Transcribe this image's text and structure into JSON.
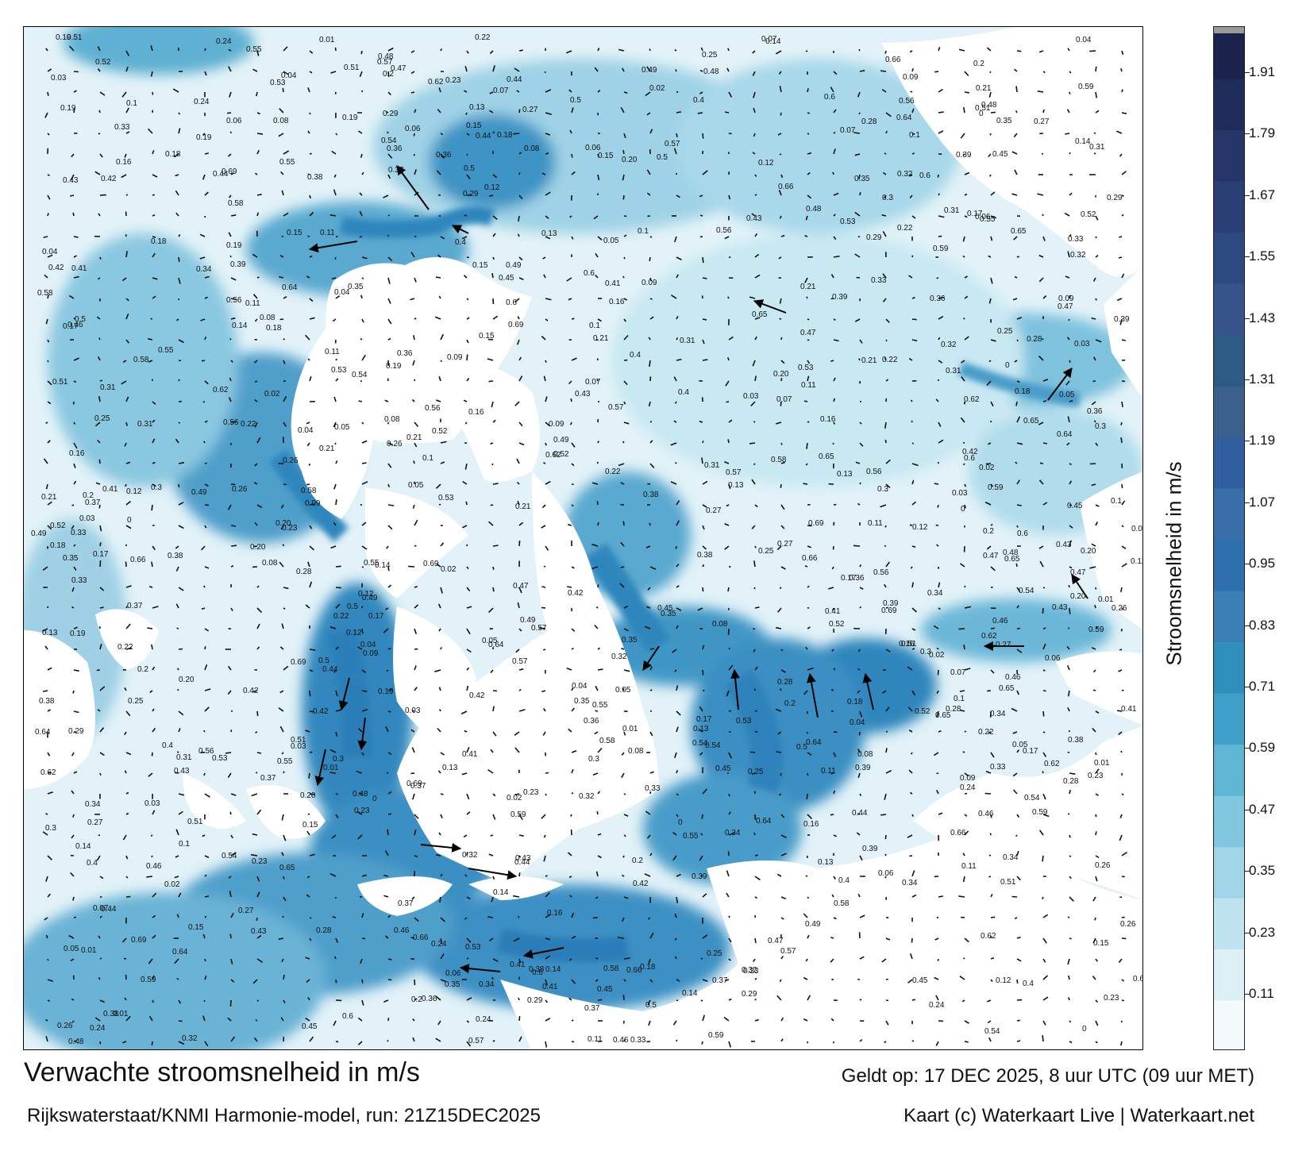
{
  "title": "Verwachte stroomsnelheid in m/s",
  "subtitle": "Rijkswaterstaat/KNMI Harmonie-model, run: 21Z15DEC2025",
  "valid_time": "Geldt op: 17 DEC 2025, 8 uur UTC (09 uur MET)",
  "credit": "Kaart (c) Waterkaart Live | Waterkaart.net",
  "colorbar": {
    "label": "Stroomsnelheid in m/s",
    "ticks": [
      "0.11",
      "0.23",
      "0.35",
      "0.47",
      "0.59",
      "0.71",
      "0.83",
      "0.95",
      "1.07",
      "1.19",
      "1.31",
      "1.43",
      "1.55",
      "1.67",
      "1.79",
      "1.91"
    ],
    "colors": [
      "#f4fafc",
      "#dcf0f6",
      "#bfe4ef",
      "#9fd5e7",
      "#7fc6de",
      "#5fb5d4",
      "#3ea0c8",
      "#2f8fbd",
      "#3a7fb5",
      "#2e6fad",
      "#3a6ea9",
      "#2f5f9e",
      "#3a5f8a",
      "#2e5a86",
      "#35558a",
      "#2a4a80",
      "#2a3f73",
      "#263668",
      "#1f2c5a",
      "#1b234d"
    ],
    "min": 0,
    "max": 2.0
  },
  "chart_data": {
    "type": "heatmap",
    "variable": "stroomsnelheid",
    "unit": "m/s",
    "range": [
      0,
      2.0
    ],
    "arrows": "vector field of current direction",
    "value_labels": [
      {
        "v": "0.19"
      },
      {
        "v": "0.20"
      },
      {
        "v": "0.21"
      },
      {
        "v": "0.22"
      },
      {
        "v": "0.23"
      },
      {
        "v": "0.16"
      },
      {
        "v": "0.15"
      },
      {
        "v": "0.14"
      },
      {
        "v": "0.13"
      },
      {
        "v": "0.12"
      },
      {
        "v": "0.11"
      },
      {
        "v": "0.2"
      },
      {
        "v": "0.09"
      },
      {
        "v": "0.18"
      },
      {
        "v": "0.08"
      },
      {
        "v": "0.1"
      },
      {
        "v": "0.07"
      },
      {
        "v": "0.05"
      },
      {
        "v": "0.04"
      },
      {
        "v": "0.03"
      },
      {
        "v": "0.41"
      },
      {
        "v": "0.42"
      },
      {
        "v": "0.45"
      },
      {
        "v": "0.35"
      },
      {
        "v": "0.36"
      },
      {
        "v": "0.39"
      },
      {
        "v": "0.4"
      },
      {
        "v": "0.55"
      },
      {
        "v": "0.54"
      },
      {
        "v": "0.49"
      },
      {
        "v": "0.66"
      },
      {
        "v": "0.6"
      },
      {
        "v": "0.57"
      },
      {
        "v": "0.56"
      },
      {
        "v": "0.5"
      },
      {
        "v": "0.43"
      },
      {
        "v": "0.38"
      },
      {
        "v": "0.37"
      },
      {
        "v": "0.34"
      },
      {
        "v": "0.33"
      },
      {
        "v": "0.32"
      },
      {
        "v": "0.31"
      },
      {
        "v": "0.3"
      },
      {
        "v": "0.69"
      },
      {
        "v": "0.65"
      },
      {
        "v": "0.58"
      },
      {
        "v": "0.59"
      },
      {
        "v": "0.51"
      },
      {
        "v": "0.62"
      },
      {
        "v": "0.64"
      },
      {
        "v": "0.53"
      },
      {
        "v": "0.52"
      },
      {
        "v": "0.47"
      },
      {
        "v": "0.46"
      },
      {
        "v": "0.48"
      },
      {
        "v": "0.44"
      },
      {
        "v": "0.29"
      },
      {
        "v": "0.28"
      },
      {
        "v": "0.27"
      },
      {
        "v": "0.26"
      },
      {
        "v": "0.25"
      },
      {
        "v": "0.24"
      },
      {
        "v": "0.17"
      },
      {
        "v": "0.06"
      },
      {
        "v": "0.02"
      },
      {
        "v": "0.01"
      },
      {
        "v": "0"
      }
    ]
  }
}
